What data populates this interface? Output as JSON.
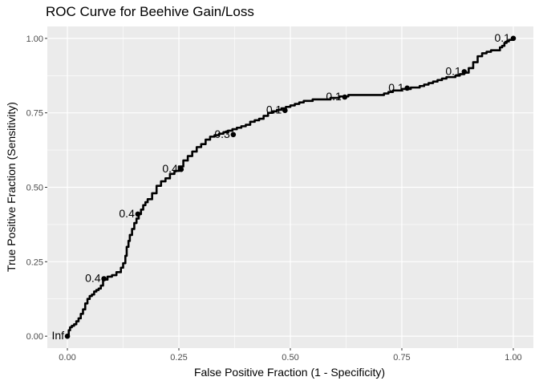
{
  "chart_data": {
    "type": "line",
    "title": "ROC Curve for Beehive Gain/Loss",
    "xlabel": "False Positive Fraction (1 - Specificity)",
    "ylabel": "True Positive Fraction (Sensitivity)",
    "xlim": [
      -0.045,
      1.045
    ],
    "ylim": [
      -0.04,
      1.04
    ],
    "grid": true,
    "x_ticks": [
      {
        "value": 0.0,
        "label": "0.00"
      },
      {
        "value": 0.25,
        "label": "0.25"
      },
      {
        "value": 0.5,
        "label": "0.50"
      },
      {
        "value": 0.75,
        "label": "0.75"
      },
      {
        "value": 1.0,
        "label": "1.00"
      }
    ],
    "y_ticks": [
      {
        "value": 0.0,
        "label": "0.00"
      },
      {
        "value": 0.25,
        "label": "0.25"
      },
      {
        "value": 0.5,
        "label": "0.50"
      },
      {
        "value": 0.75,
        "label": "0.75"
      },
      {
        "value": 1.0,
        "label": "1.00"
      }
    ],
    "series": [
      {
        "x": [
          0.0,
          0.003,
          0.006,
          0.01,
          0.015,
          0.02,
          0.025,
          0.03,
          0.035,
          0.04,
          0.045,
          0.05,
          0.055,
          0.06,
          0.065,
          0.07,
          0.075,
          0.08,
          0.09,
          0.1,
          0.11,
          0.12,
          0.125,
          0.13,
          0.133,
          0.137,
          0.14,
          0.145,
          0.15,
          0.155,
          0.16,
          0.165,
          0.17,
          0.175,
          0.18,
          0.19,
          0.2,
          0.21,
          0.22,
          0.23,
          0.24,
          0.25,
          0.26,
          0.27,
          0.28,
          0.29,
          0.3,
          0.31,
          0.32,
          0.33,
          0.34,
          0.35,
          0.36,
          0.37,
          0.38,
          0.39,
          0.4,
          0.41,
          0.42,
          0.43,
          0.44,
          0.45,
          0.46,
          0.47,
          0.48,
          0.49,
          0.5,
          0.51,
          0.52,
          0.53,
          0.55,
          0.57,
          0.59,
          0.61,
          0.63,
          0.65,
          0.67,
          0.69,
          0.71,
          0.72,
          0.73,
          0.75,
          0.77,
          0.79,
          0.8,
          0.81,
          0.82,
          0.83,
          0.84,
          0.85,
          0.86,
          0.87,
          0.88,
          0.89,
          0.9,
          0.91,
          0.92,
          0.93,
          0.94,
          0.95,
          0.96,
          0.97,
          0.975,
          0.98,
          0.985,
          0.99,
          1.0
        ],
        "y": [
          0.0,
          0.02,
          0.03,
          0.035,
          0.04,
          0.05,
          0.06,
          0.075,
          0.09,
          0.11,
          0.125,
          0.135,
          0.14,
          0.15,
          0.155,
          0.16,
          0.17,
          0.19,
          0.2,
          0.205,
          0.215,
          0.23,
          0.245,
          0.27,
          0.3,
          0.32,
          0.34,
          0.36,
          0.38,
          0.395,
          0.41,
          0.425,
          0.44,
          0.45,
          0.46,
          0.48,
          0.505,
          0.52,
          0.53,
          0.545,
          0.555,
          0.57,
          0.59,
          0.605,
          0.62,
          0.635,
          0.645,
          0.66,
          0.67,
          0.675,
          0.68,
          0.685,
          0.69,
          0.695,
          0.7,
          0.705,
          0.71,
          0.72,
          0.725,
          0.73,
          0.74,
          0.75,
          0.755,
          0.76,
          0.765,
          0.77,
          0.775,
          0.78,
          0.785,
          0.79,
          0.795,
          0.795,
          0.8,
          0.805,
          0.81,
          0.81,
          0.81,
          0.81,
          0.815,
          0.82,
          0.825,
          0.83,
          0.835,
          0.84,
          0.845,
          0.85,
          0.855,
          0.86,
          0.865,
          0.87,
          0.87,
          0.875,
          0.88,
          0.885,
          0.9,
          0.92,
          0.94,
          0.95,
          0.955,
          0.96,
          0.96,
          0.97,
          0.975,
          0.985,
          0.99,
          0.995,
          1.0
        ]
      }
    ],
    "point_labels": [
      {
        "x": 0.0,
        "y": 0.0,
        "label": "Inf"
      },
      {
        "x": 0.082,
        "y": 0.193,
        "label": "0.4"
      },
      {
        "x": 0.158,
        "y": 0.41,
        "label": "0.4"
      },
      {
        "x": 0.255,
        "y": 0.56,
        "label": "0.4"
      },
      {
        "x": 0.372,
        "y": 0.677,
        "label": "0.3"
      },
      {
        "x": 0.488,
        "y": 0.758,
        "label": "0.1"
      },
      {
        "x": 0.622,
        "y": 0.803,
        "label": "0.1"
      },
      {
        "x": 0.762,
        "y": 0.833,
        "label": "0.1"
      },
      {
        "x": 0.89,
        "y": 0.888,
        "label": "0.1"
      },
      {
        "x": 1.0,
        "y": 1.0,
        "label": "0.1"
      }
    ]
  }
}
